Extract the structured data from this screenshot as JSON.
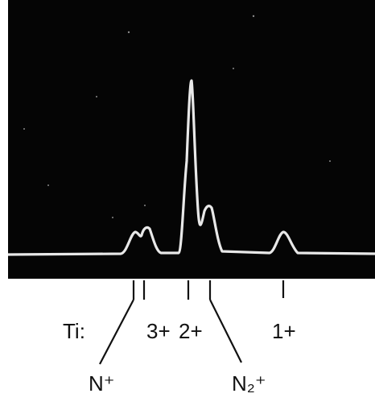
{
  "labels": {
    "element": "Ti:",
    "peaks": [
      "3+",
      "2+",
      "1+"
    ],
    "ions": [
      "N⁺",
      "N₂⁺"
    ]
  }
}
